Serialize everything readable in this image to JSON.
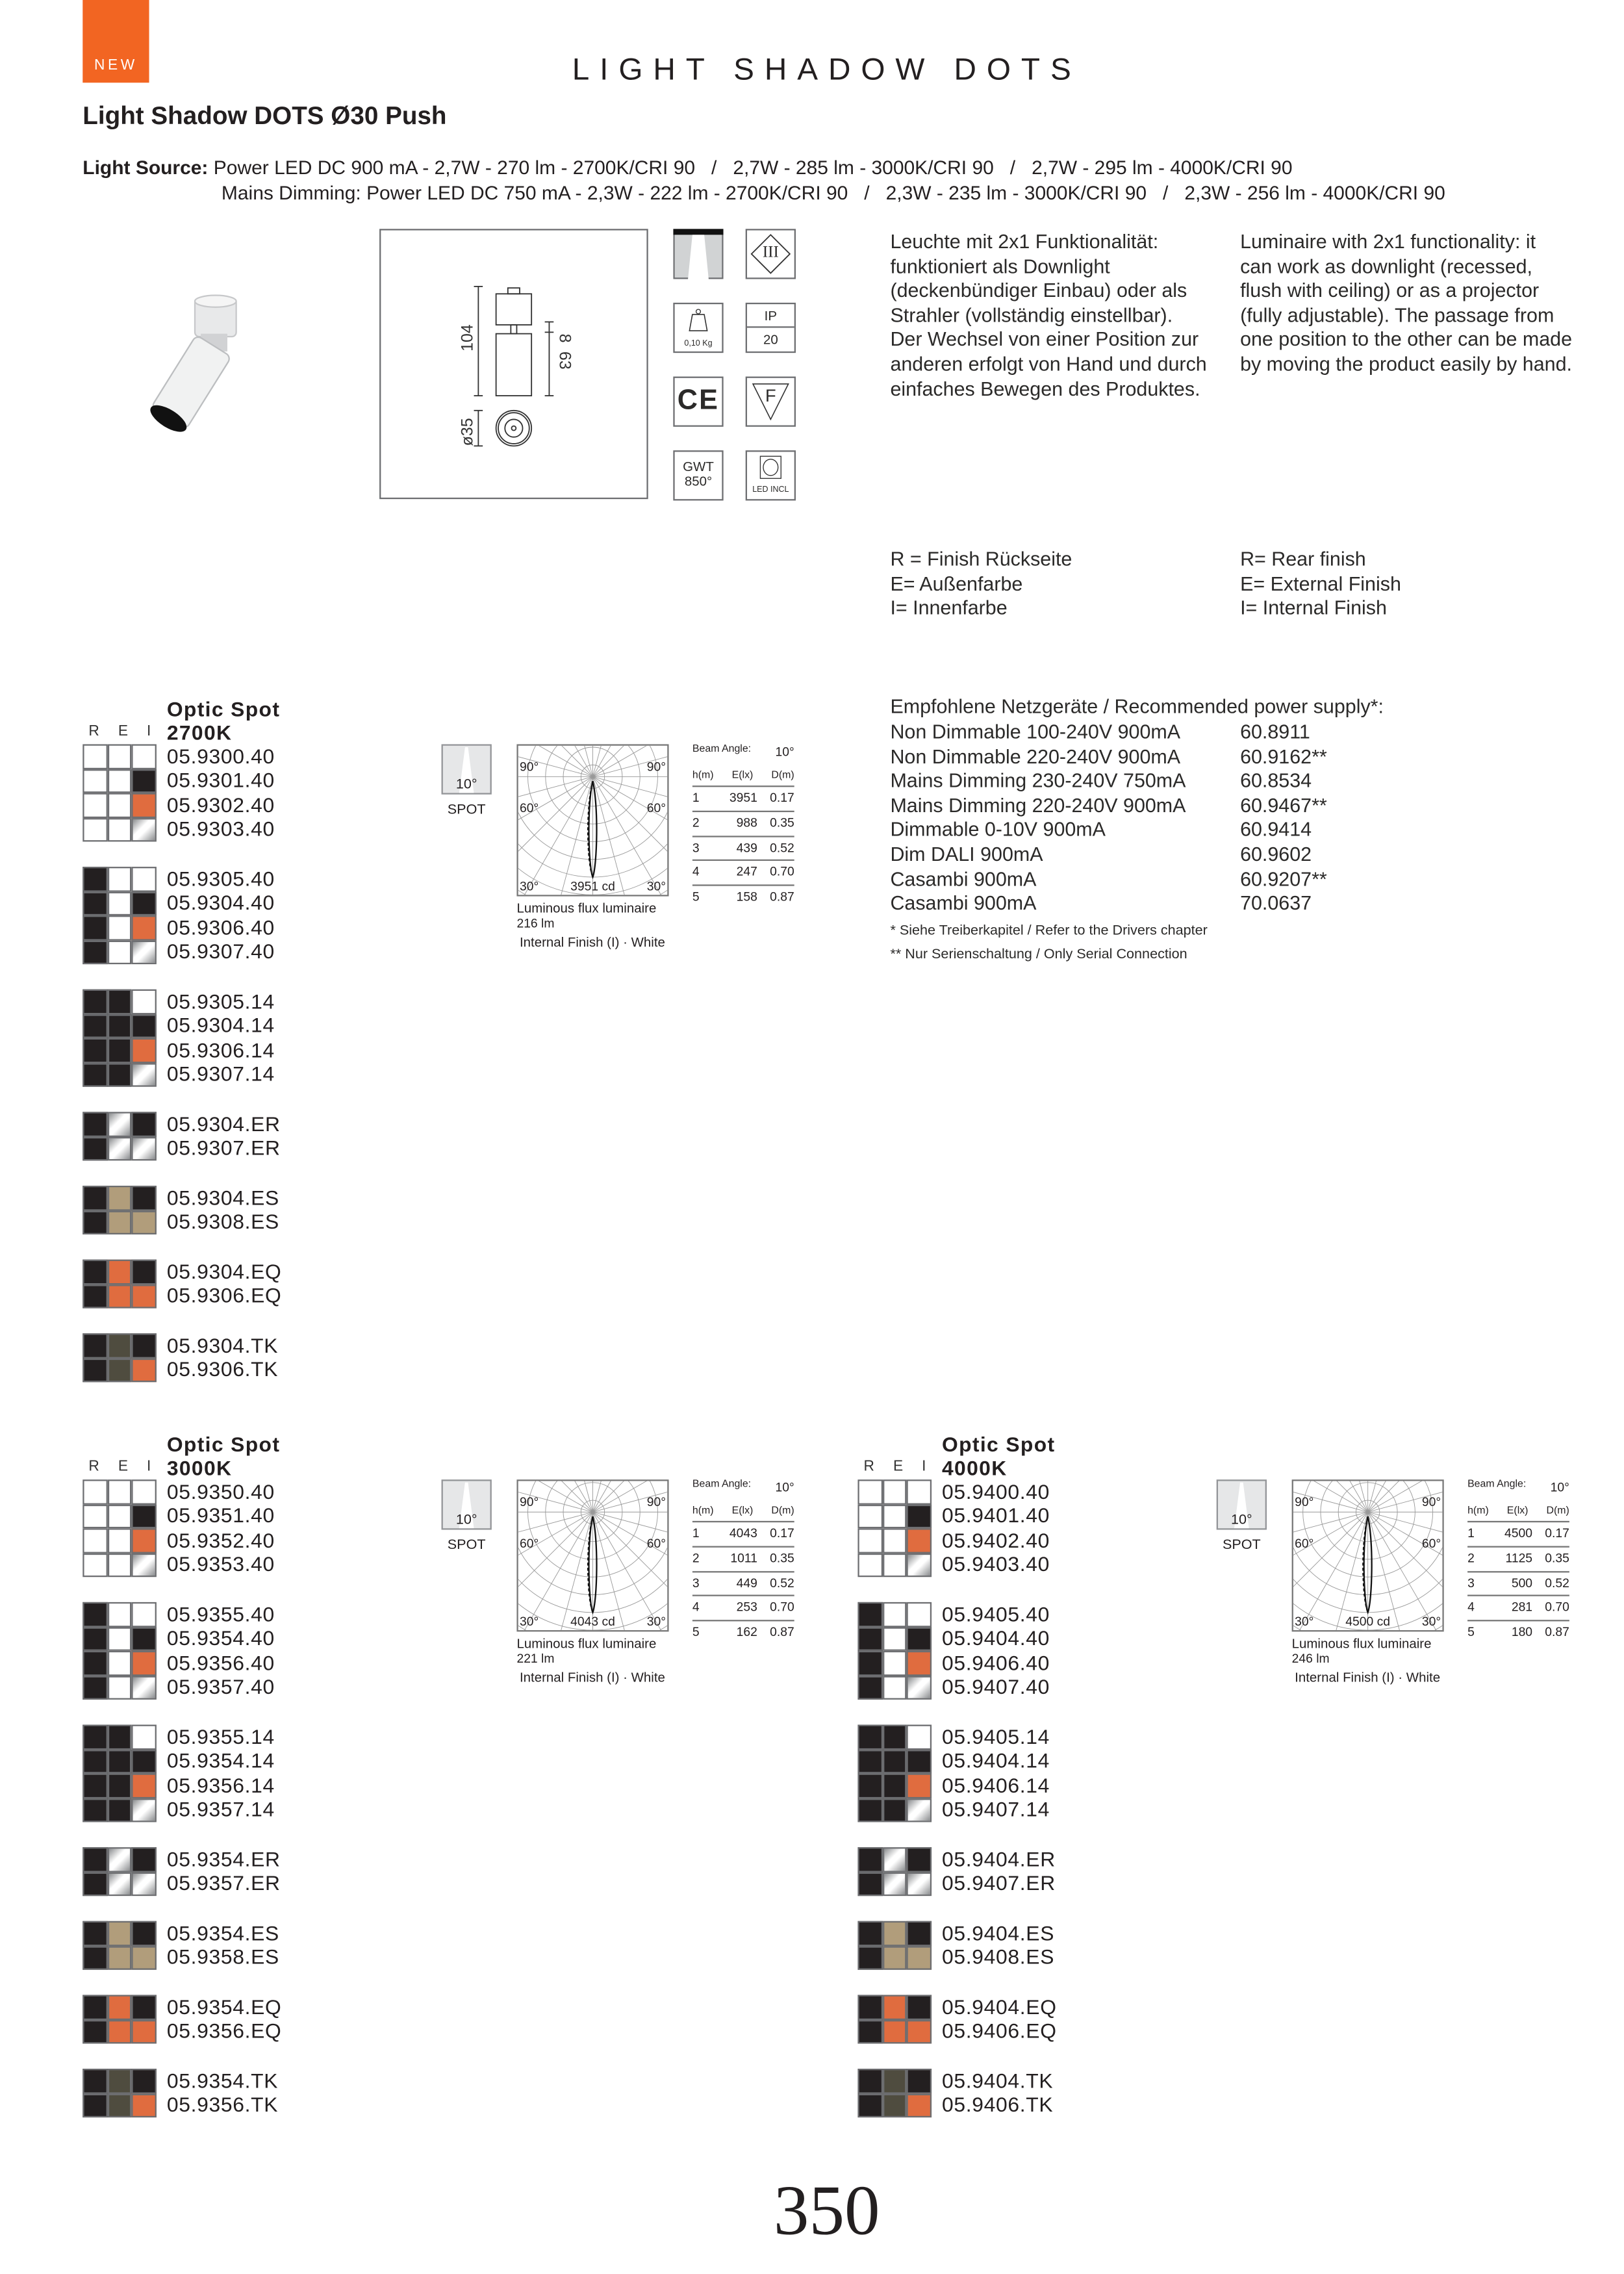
{
  "badge": "NEW",
  "header": {
    "title": "LIGHT SHADOW DOTS",
    "product": "Light Shadow DOTS Ø30 Push"
  },
  "light_source": {
    "label": "Light Source:",
    "line1": "Power LED DC 900 mA - 2,7W - 270 lm - 2700K/CRI 90   /   2,7W - 285 lm - 3000K/CRI 90   /   2,7W - 295 lm - 4000K/CRI 90",
    "line2": "Mains Dimming: Power LED DC 750 mA - 2,3W - 222 lm - 2700K/CRI 90   /   2,3W - 235 lm - 3000K/CRI 90   /   2,3W - 256 lm - 4000K/CRI 90"
  },
  "drawing": {
    "height_total": "104",
    "gap": "8",
    "body": "63",
    "diameter": "ø35"
  },
  "icons": {
    "class_iii": "III",
    "weight": "0,10 Kg",
    "ip_label": "IP",
    "ip_value": "20",
    "ce": "CE",
    "f_mark": "F",
    "gwt_1": "GWT",
    "gwt_2": "850°",
    "led": "LED INCL"
  },
  "description": {
    "de": "Leuchte mit 2x1 Funktionalität: funktioniert als Downlight (deckenbündiger Einbau) oder als Strahler (vollständig einstellbar). Der Wechsel von einer Position zur anderen erfolgt von Hand und durch einfaches Bewegen des Produktes.",
    "en": "Luminaire with 2x1 functionality: it can work as downlight (recessed, flush with ceiling) or as a projector (fully adjustable). The passage from one position to the other can be made by moving the product easily by hand."
  },
  "legend": {
    "de": [
      "R = Finish Rückseite",
      "E= Außenfarbe",
      "I= Innenfarbe"
    ],
    "en": [
      "R= Rear finish",
      "E= External Finish",
      "I= Internal Finish"
    ]
  },
  "power_supply": {
    "title": "Empfohlene Netzgeräte / Recommended power supply*:",
    "items": [
      {
        "name": "Non Dimmable 100-240V 900mA",
        "code": "60.8911"
      },
      {
        "name": "Non Dimmable 220-240V 900mA",
        "code": "60.9162**"
      },
      {
        "name": "Mains Dimming 230-240V 750mA",
        "code": "60.8534"
      },
      {
        "name": "Mains Dimming 220-240V 900mA",
        "code": "60.9467**"
      },
      {
        "name": "Dimmable 0-10V 900mA",
        "code": "60.9414"
      },
      {
        "name": "Dim DALI 900mA",
        "code": "60.9602"
      },
      {
        "name": "Casambi 900mA",
        "code": "60.9207**"
      },
      {
        "name": "Casambi 900mA",
        "code": "70.0637"
      }
    ],
    "note1": "* Siehe Treiberkapitel / Refer to the Drivers chapter",
    "note2": "** Nur Serienschaltung / Only Serial Connection"
  },
  "colors": {
    "W": "#ffffff",
    "K": "#231f20",
    "O": "#e06c3f",
    "C": "chrome",
    "S": "#b19d7b",
    "T": "#4f4c3f",
    "accent": "#f26522"
  },
  "swatch_patterns": [
    [
      [
        "W",
        "W",
        "W"
      ],
      [
        "W",
        "W",
        "K"
      ],
      [
        "W",
        "W",
        "O"
      ],
      [
        "W",
        "W",
        "C"
      ]
    ],
    [
      [
        "K",
        "W",
        "W"
      ],
      [
        "K",
        "W",
        "K"
      ],
      [
        "K",
        "W",
        "O"
      ],
      [
        "K",
        "W",
        "C"
      ]
    ],
    [
      [
        "K",
        "K",
        "W"
      ],
      [
        "K",
        "K",
        "K"
      ],
      [
        "K",
        "K",
        "O"
      ],
      [
        "K",
        "K",
        "C"
      ]
    ],
    [
      [
        "K",
        "C",
        "K"
      ],
      [
        "K",
        "C",
        "C"
      ]
    ],
    [
      [
        "K",
        "S",
        "K"
      ],
      [
        "K",
        "S",
        "S"
      ]
    ],
    [
      [
        "K",
        "O",
        "K"
      ],
      [
        "K",
        "O",
        "O"
      ]
    ],
    [
      [
        "K",
        "T",
        "K"
      ],
      [
        "K",
        "T",
        "O"
      ]
    ]
  ],
  "sections": [
    {
      "title": "Optic Spot",
      "rei": "R E I",
      "cct": "2700K",
      "groups": [
        [
          "05.9300.40",
          "05.9301.40",
          "05.9302.40",
          "05.9303.40"
        ],
        [
          "05.9305.40",
          "05.9304.40",
          "05.9306.40",
          "05.9307.40"
        ],
        [
          "05.9305.14",
          "05.9304.14",
          "05.9306.14",
          "05.9307.14"
        ],
        [
          "05.9304.ER",
          "05.9307.ER"
        ],
        [
          "05.9304.ES",
          "05.9308.ES"
        ],
        [
          "05.9304.EQ",
          "05.9306.EQ"
        ],
        [
          "05.9304.TK",
          "05.9306.TK"
        ]
      ],
      "optic": {
        "angle": "10°",
        "label": "SPOT"
      },
      "polar": {
        "a90": "90°",
        "a60": "60°",
        "a30": "30°",
        "peak": "3951 cd"
      },
      "flux_label": "Luminous flux luminaire",
      "flux": "216 lm",
      "finish": "Internal Finish (I) · White",
      "beam_label": "Beam Angle:",
      "beam": "10°",
      "table_head": [
        "h(m)",
        "E(lx)",
        "D(m)"
      ],
      "table": [
        [
          "1",
          "3951",
          "0.17"
        ],
        [
          "2",
          "988",
          "0.35"
        ],
        [
          "3",
          "439",
          "0.52"
        ],
        [
          "4",
          "247",
          "0.70"
        ],
        [
          "5",
          "158",
          "0.87"
        ]
      ]
    },
    {
      "title": "Optic Spot",
      "rei": "R E I",
      "cct": "3000K",
      "groups": [
        [
          "05.9350.40",
          "05.9351.40",
          "05.9352.40",
          "05.9353.40"
        ],
        [
          "05.9355.40",
          "05.9354.40",
          "05.9356.40",
          "05.9357.40"
        ],
        [
          "05.9355.14",
          "05.9354.14",
          "05.9356.14",
          "05.9357.14"
        ],
        [
          "05.9354.ER",
          "05.9357.ER"
        ],
        [
          "05.9354.ES",
          "05.9358.ES"
        ],
        [
          "05.9354.EQ",
          "05.9356.EQ"
        ],
        [
          "05.9354.TK",
          "05.9356.TK"
        ]
      ],
      "optic": {
        "angle": "10°",
        "label": "SPOT"
      },
      "polar": {
        "a90": "90°",
        "a60": "60°",
        "a30": "30°",
        "peak": "4043 cd"
      },
      "flux_label": "Luminous flux luminaire",
      "flux": "221 lm",
      "finish": "Internal Finish (I) · White",
      "beam_label": "Beam Angle:",
      "beam": "10°",
      "table_head": [
        "h(m)",
        "E(lx)",
        "D(m)"
      ],
      "table": [
        [
          "1",
          "4043",
          "0.17"
        ],
        [
          "2",
          "1011",
          "0.35"
        ],
        [
          "3",
          "449",
          "0.52"
        ],
        [
          "4",
          "253",
          "0.70"
        ],
        [
          "5",
          "162",
          "0.87"
        ]
      ]
    },
    {
      "title": "Optic Spot",
      "rei": "R E I",
      "cct": "4000K",
      "groups": [
        [
          "05.9400.40",
          "05.9401.40",
          "05.9402.40",
          "05.9403.40"
        ],
        [
          "05.9405.40",
          "05.9404.40",
          "05.9406.40",
          "05.9407.40"
        ],
        [
          "05.9405.14",
          "05.9404.14",
          "05.9406.14",
          "05.9407.14"
        ],
        [
          "05.9404.ER",
          "05.9407.ER"
        ],
        [
          "05.9404.ES",
          "05.9408.ES"
        ],
        [
          "05.9404.EQ",
          "05.9406.EQ"
        ],
        [
          "05.9404.TK",
          "05.9406.TK"
        ]
      ],
      "optic": {
        "angle": "10°",
        "label": "SPOT"
      },
      "polar": {
        "a90": "90°",
        "a60": "60°",
        "a30": "30°",
        "peak": "4500 cd"
      },
      "flux_label": "Luminous flux luminaire",
      "flux": "246 lm",
      "finish": "Internal Finish (I) · White",
      "beam_label": "Beam Angle:",
      "beam": "10°",
      "table_head": [
        "h(m)",
        "E(lx)",
        "D(m)"
      ],
      "table": [
        [
          "1",
          "4500",
          "0.17"
        ],
        [
          "2",
          "1125",
          "0.35"
        ],
        [
          "3",
          "500",
          "0.52"
        ],
        [
          "4",
          "281",
          "0.70"
        ],
        [
          "5",
          "180",
          "0.87"
        ]
      ]
    }
  ],
  "page_number": "350"
}
